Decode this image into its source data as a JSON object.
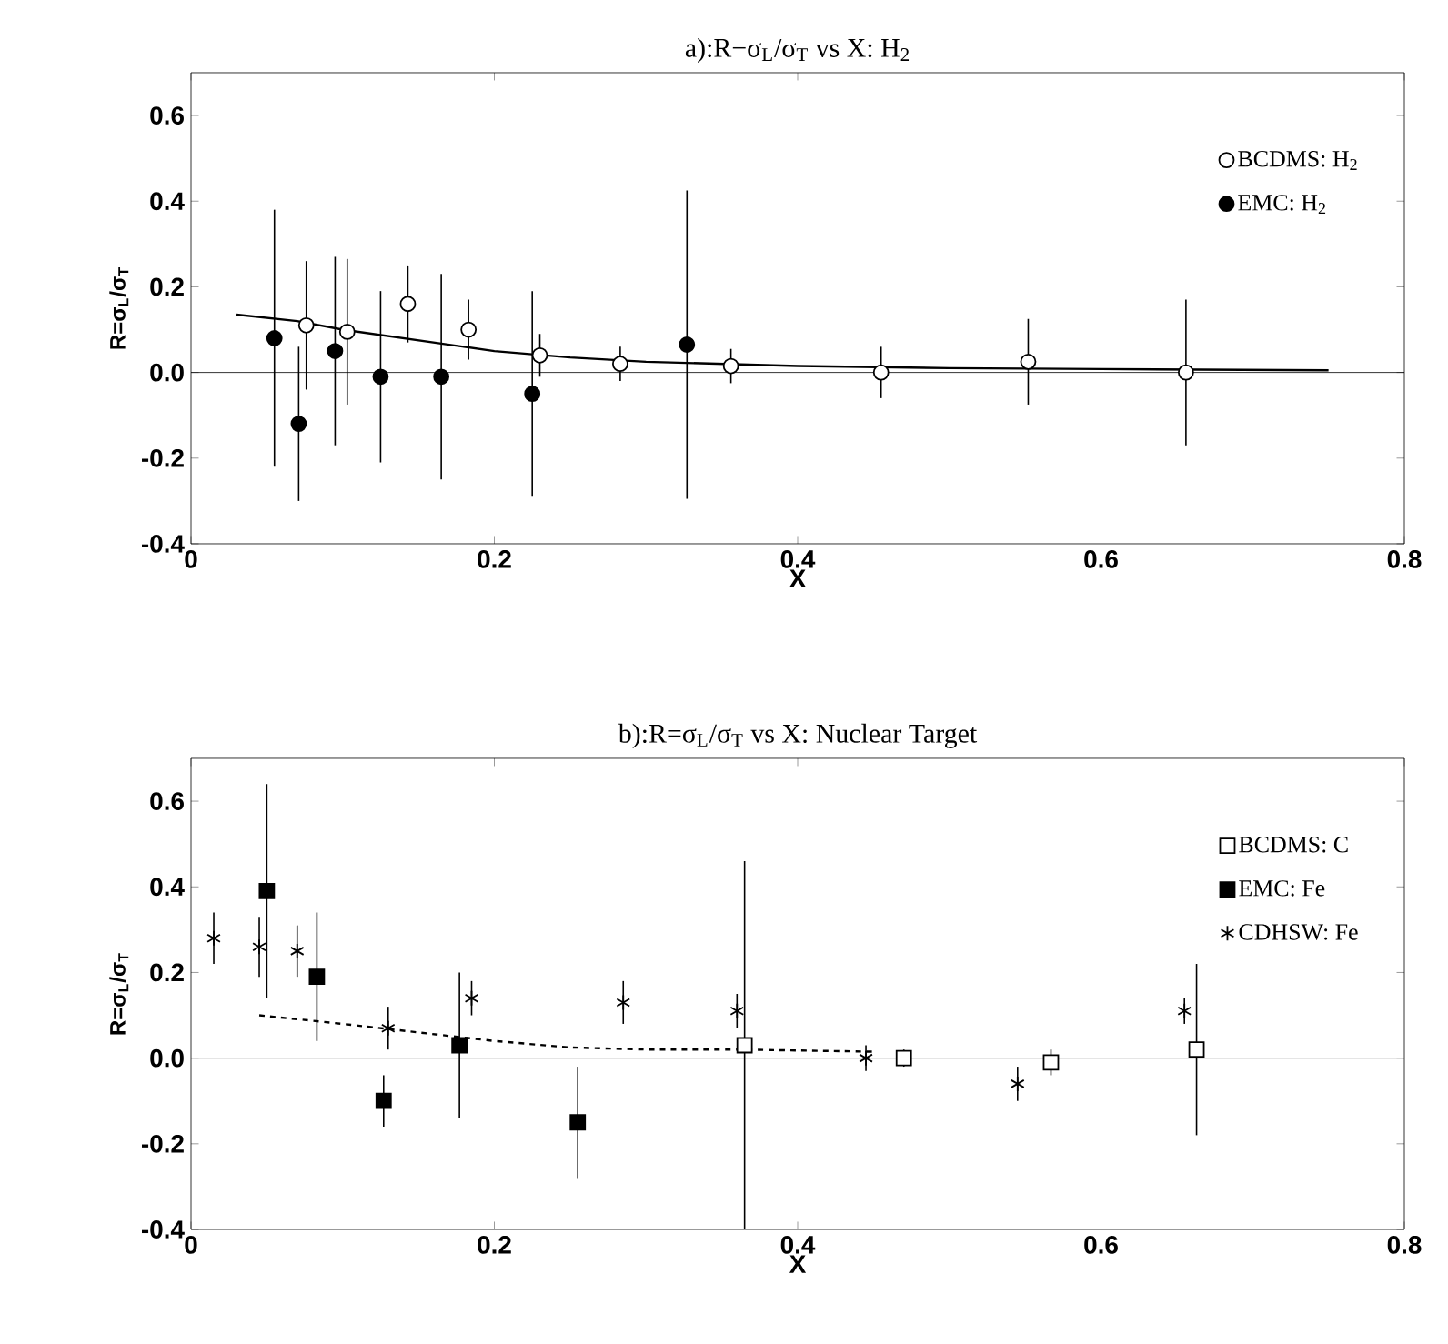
{
  "chart_data": [
    {
      "type": "scatter",
      "title": "a):R−σ$_{L}$/σ$_{T}$ vs X: H$_{2}$",
      "xlabel": "X",
      "ylabel": "R=σ$_{L}$/σ$_{T}$",
      "xlim": [
        0,
        0.8
      ],
      "ylim": [
        -0.4,
        0.7
      ],
      "xticks": [
        0,
        0.2,
        0.4,
        0.6,
        0.8
      ],
      "yticks": [
        -0.4,
        -0.2,
        {
          "value": 0,
          "label": "0.0"
        },
        0.2,
        0.4,
        0.6
      ],
      "legend": "top right",
      "ref_lines": [
        {
          "axis": "y",
          "value": 0
        }
      ],
      "series": [
        {
          "name": "BCDMS: H$_{2}$",
          "color": "#ffffff",
          "marker": "circle",
          "x": [
            0.076,
            0.103,
            0.143,
            0.183,
            0.23,
            0.283,
            0.356,
            0.455,
            0.552,
            0.656
          ],
          "values": [
            0.11,
            0.095,
            0.16,
            0.1,
            0.04,
            0.02,
            0.015,
            0.0,
            0.025,
            0.0
          ],
          "errors": [
            0.15,
            0.17,
            0.09,
            0.07,
            0.05,
            0.04,
            0.04,
            0.06,
            0.1,
            0.17
          ]
        },
        {
          "name": "EMC:     H$_{2}$",
          "color": "#000000",
          "marker": "circle",
          "x": [
            0.055,
            0.071,
            0.095,
            0.125,
            0.165,
            0.225,
            0.327
          ],
          "values": [
            0.08,
            -0.12,
            0.05,
            -0.01,
            -0.01,
            -0.05,
            0.065
          ],
          "errors": [
            0.3,
            0.18,
            0.22,
            0.2,
            0.24,
            0.24,
            0.36
          ]
        },
        {
          "type": "line",
          "color": "#000000",
          "marker": "none",
          "line_style": "solid",
          "x": [
            0.03,
            0.07,
            0.1,
            0.15,
            0.2,
            0.25,
            0.3,
            0.4,
            0.5,
            0.6,
            0.75
          ],
          "values": [
            0.135,
            0.12,
            0.1,
            0.075,
            0.05,
            0.035,
            0.025,
            0.015,
            0.01,
            0.008,
            0.005
          ]
        }
      ]
    },
    {
      "type": "scatter",
      "title": "b):R=σ$_{L}$/σ$_{T}$ vs X: Nuclear Target",
      "xlabel": "X",
      "ylabel": "R=σ$_{L}$/σ$_{T}$",
      "xlim": [
        0,
        0.8
      ],
      "ylim": [
        -0.4,
        0.7
      ],
      "xticks": [
        0,
        0.2,
        0.4,
        0.6,
        0.8
      ],
      "yticks": [
        -0.4,
        -0.2,
        {
          "value": 0,
          "label": "0.0"
        },
        0.2,
        0.4,
        0.6
      ],
      "legend": "top right",
      "ref_lines": [
        {
          "axis": "y",
          "value": 0
        }
      ],
      "series": [
        {
          "name": "BCDMS: C",
          "color": "#ffffff",
          "marker": "square",
          "x": [
            0.365,
            0.47,
            0.567,
            0.663
          ],
          "values": [
            0.03,
            0.0,
            -0.01,
            0.02
          ],
          "errors": [
            0.43,
            0.02,
            0.03,
            0.2
          ]
        },
        {
          "name": "EMC:      Fe",
          "color": "#000000",
          "marker": "square",
          "x": [
            0.05,
            0.083,
            0.127,
            0.177,
            0.255
          ],
          "values": [
            0.39,
            0.19,
            -0.1,
            0.03,
            -0.15
          ],
          "errors": [
            0.25,
            0.15,
            0.06,
            0.17,
            0.13
          ]
        },
        {
          "name": "CDHSW: Fe",
          "color": "#000000",
          "marker": "cross",
          "x": [
            0.015,
            0.045,
            0.07,
            0.13,
            0.185,
            0.285,
            0.36,
            0.445,
            0.545,
            0.655
          ],
          "values": [
            0.28,
            0.26,
            0.25,
            0.07,
            0.14,
            0.13,
            0.11,
            0.0,
            -0.06,
            0.11
          ],
          "errors": [
            0.06,
            0.07,
            0.06,
            0.05,
            0.04,
            0.05,
            0.04,
            0.03,
            0.04,
            0.03
          ]
        },
        {
          "type": "line",
          "color": "#000000",
          "marker": "none",
          "line_style": "dashed",
          "x": [
            0.045,
            0.1,
            0.15,
            0.2,
            0.25,
            0.3,
            0.36,
            0.45
          ],
          "values": [
            0.1,
            0.08,
            0.06,
            0.04,
            0.025,
            0.02,
            0.02,
            0.015
          ]
        }
      ]
    }
  ]
}
